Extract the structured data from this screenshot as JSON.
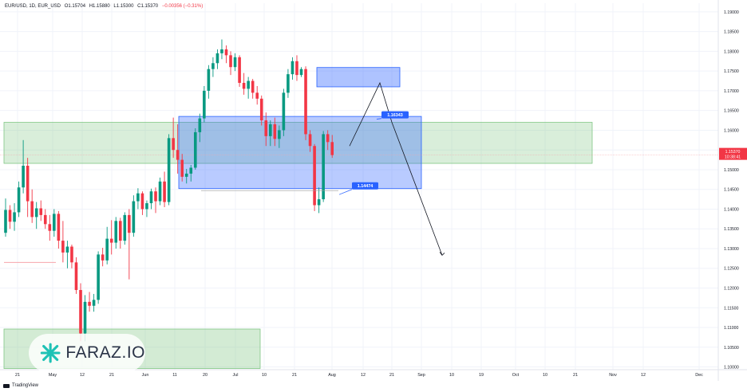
{
  "header": {
    "symbol": "EUR/USD, 1D, EUR_USD",
    "open": "O1.15704",
    "high": "H1.15880",
    "low": "L1.15300",
    "close": "C1.15370",
    "change": "−0.00356 (−0.31%)"
  },
  "footer": {
    "brand": "TradingView"
  },
  "watermark": {
    "brand": "FARAZ.IO"
  },
  "colors": {
    "up": "#089981",
    "down": "#f23645",
    "zone_green": "#c8e6c9",
    "zone_blue": "#6f9ef0",
    "label_blue": "#2962ff",
    "price_tag": "#f23645"
  },
  "chart_data": {
    "type": "candlestick",
    "symbol": "EUR/USD",
    "timeframe": "1D",
    "price_axis": {
      "range": [
        1.0993,
        1.1922
      ],
      "tick_labels": [
        "1.19000",
        "1.18500",
        "1.18000",
        "1.17500",
        "1.17000",
        "1.16500",
        "1.16000",
        "1.15500",
        "1.15000",
        "1.14500",
        "1.14000",
        "1.13500",
        "1.13000",
        "1.12500",
        "1.12000",
        "1.11500",
        "1.11000",
        "1.10500",
        "1.10000"
      ],
      "current_price": "1.15370",
      "countdown": "10:38:41"
    },
    "time_axis": {
      "tick_labels": [
        "21",
        "May",
        "12",
        "21",
        "Jun",
        "11",
        "20",
        "Jul",
        "10",
        "21",
        "Aug",
        "12",
        "21",
        "Sep",
        "10",
        "19",
        "Oct",
        "10",
        "21",
        "Nov",
        "12",
        "Dec"
      ]
    },
    "candles": [
      {
        "o": 1.134,
        "h": 1.1427,
        "l": 1.133,
        "c": 1.1398
      },
      {
        "o": 1.1398,
        "h": 1.141,
        "l": 1.135,
        "c": 1.1368
      },
      {
        "o": 1.1368,
        "h": 1.1415,
        "l": 1.1345,
        "c": 1.1392
      },
      {
        "o": 1.1392,
        "h": 1.147,
        "l": 1.138,
        "c": 1.1455
      },
      {
        "o": 1.1455,
        "h": 1.1575,
        "l": 1.144,
        "c": 1.151
      },
      {
        "o": 1.151,
        "h": 1.153,
        "l": 1.138,
        "c": 1.142
      },
      {
        "o": 1.142,
        "h": 1.145,
        "l": 1.1365,
        "c": 1.138
      },
      {
        "o": 1.138,
        "h": 1.1418,
        "l": 1.135,
        "c": 1.1402
      },
      {
        "o": 1.1402,
        "h": 1.1422,
        "l": 1.137,
        "c": 1.1385
      },
      {
        "o": 1.1385,
        "h": 1.14,
        "l": 1.135,
        "c": 1.1362
      },
      {
        "o": 1.1362,
        "h": 1.1385,
        "l": 1.132,
        "c": 1.1345
      },
      {
        "o": 1.1345,
        "h": 1.14,
        "l": 1.133,
        "c": 1.1388
      },
      {
        "o": 1.1388,
        "h": 1.1395,
        "l": 1.13,
        "c": 1.132
      },
      {
        "o": 1.132,
        "h": 1.137,
        "l": 1.1265,
        "c": 1.129
      },
      {
        "o": 1.129,
        "h": 1.132,
        "l": 1.125,
        "c": 1.1305
      },
      {
        "o": 1.1305,
        "h": 1.131,
        "l": 1.125,
        "c": 1.1265
      },
      {
        "o": 1.1265,
        "h": 1.1278,
        "l": 1.1185,
        "c": 1.1195
      },
      {
        "o": 1.1195,
        "h": 1.1212,
        "l": 1.1065,
        "c": 1.1085
      },
      {
        "o": 1.1085,
        "h": 1.1182,
        "l": 1.1065,
        "c": 1.1165
      },
      {
        "o": 1.1165,
        "h": 1.119,
        "l": 1.114,
        "c": 1.1155
      },
      {
        "o": 1.1155,
        "h": 1.1185,
        "l": 1.114,
        "c": 1.117
      },
      {
        "o": 1.117,
        "h": 1.1293,
        "l": 1.116,
        "c": 1.1285
      },
      {
        "o": 1.1285,
        "h": 1.1302,
        "l": 1.1255,
        "c": 1.127
      },
      {
        "o": 1.127,
        "h": 1.1355,
        "l": 1.126,
        "c": 1.1325
      },
      {
        "o": 1.1325,
        "h": 1.1372,
        "l": 1.1285,
        "c": 1.1315
      },
      {
        "o": 1.1315,
        "h": 1.138,
        "l": 1.13,
        "c": 1.137
      },
      {
        "o": 1.137,
        "h": 1.1378,
        "l": 1.13,
        "c": 1.132
      },
      {
        "o": 1.132,
        "h": 1.1392,
        "l": 1.131,
        "c": 1.1385
      },
      {
        "o": 1.1385,
        "h": 1.14,
        "l": 1.1222,
        "c": 1.134
      },
      {
        "o": 1.134,
        "h": 1.1435,
        "l": 1.133,
        "c": 1.142
      },
      {
        "o": 1.142,
        "h": 1.1453,
        "l": 1.14,
        "c": 1.144
      },
      {
        "o": 1.144,
        "h": 1.1445,
        "l": 1.1385,
        "c": 1.14
      },
      {
        "o": 1.14,
        "h": 1.1422,
        "l": 1.138,
        "c": 1.1415
      },
      {
        "o": 1.1415,
        "h": 1.1452,
        "l": 1.14,
        "c": 1.1445
      },
      {
        "o": 1.1445,
        "h": 1.1455,
        "l": 1.139,
        "c": 1.142
      },
      {
        "o": 1.142,
        "h": 1.148,
        "l": 1.141,
        "c": 1.147
      },
      {
        "o": 1.147,
        "h": 1.1495,
        "l": 1.1405,
        "c": 1.1418
      },
      {
        "o": 1.1418,
        "h": 1.159,
        "l": 1.141,
        "c": 1.158
      },
      {
        "o": 1.158,
        "h": 1.1632,
        "l": 1.153,
        "c": 1.155
      },
      {
        "o": 1.155,
        "h": 1.1615,
        "l": 1.149,
        "c": 1.1525
      },
      {
        "o": 1.1525,
        "h": 1.154,
        "l": 1.147,
        "c": 1.1482
      },
      {
        "o": 1.1482,
        "h": 1.1502,
        "l": 1.1465,
        "c": 1.149
      },
      {
        "o": 1.149,
        "h": 1.1512,
        "l": 1.147,
        "c": 1.1505
      },
      {
        "o": 1.1505,
        "h": 1.1605,
        "l": 1.15,
        "c": 1.1595
      },
      {
        "o": 1.1595,
        "h": 1.1642,
        "l": 1.157,
        "c": 1.163
      },
      {
        "o": 1.163,
        "h": 1.1712,
        "l": 1.162,
        "c": 1.17
      },
      {
        "o": 1.17,
        "h": 1.1765,
        "l": 1.168,
        "c": 1.1755
      },
      {
        "o": 1.1755,
        "h": 1.1785,
        "l": 1.1735,
        "c": 1.177
      },
      {
        "o": 1.177,
        "h": 1.1805,
        "l": 1.1755,
        "c": 1.1795
      },
      {
        "o": 1.1795,
        "h": 1.183,
        "l": 1.178,
        "c": 1.1805
      },
      {
        "o": 1.1805,
        "h": 1.1815,
        "l": 1.177,
        "c": 1.179
      },
      {
        "o": 1.179,
        "h": 1.18,
        "l": 1.174,
        "c": 1.176
      },
      {
        "o": 1.176,
        "h": 1.1795,
        "l": 1.175,
        "c": 1.1785
      },
      {
        "o": 1.1785,
        "h": 1.179,
        "l": 1.171,
        "c": 1.172
      },
      {
        "o": 1.172,
        "h": 1.1745,
        "l": 1.169,
        "c": 1.1705
      },
      {
        "o": 1.1705,
        "h": 1.1735,
        "l": 1.168,
        "c": 1.1725
      },
      {
        "o": 1.1725,
        "h": 1.173,
        "l": 1.168,
        "c": 1.1695
      },
      {
        "o": 1.1695,
        "h": 1.1712,
        "l": 1.1665,
        "c": 1.168
      },
      {
        "o": 1.168,
        "h": 1.1688,
        "l": 1.1612,
        "c": 1.1625
      },
      {
        "o": 1.1625,
        "h": 1.1645,
        "l": 1.156,
        "c": 1.1585
      },
      {
        "o": 1.1585,
        "h": 1.1625,
        "l": 1.156,
        "c": 1.1615
      },
      {
        "o": 1.1615,
        "h": 1.1632,
        "l": 1.156,
        "c": 1.1578
      },
      {
        "o": 1.1578,
        "h": 1.1612,
        "l": 1.1555,
        "c": 1.16
      },
      {
        "o": 1.16,
        "h": 1.1705,
        "l": 1.1585,
        "c": 1.1695
      },
      {
        "o": 1.1695,
        "h": 1.1755,
        "l": 1.1682,
        "c": 1.1742
      },
      {
        "o": 1.1742,
        "h": 1.1785,
        "l": 1.1728,
        "c": 1.1775
      },
      {
        "o": 1.1775,
        "h": 1.179,
        "l": 1.1725,
        "c": 1.174
      },
      {
        "o": 1.174,
        "h": 1.176,
        "l": 1.1735,
        "c": 1.1755
      },
      {
        "o": 1.1755,
        "h": 1.1762,
        "l": 1.1575,
        "c": 1.159
      },
      {
        "o": 1.159,
        "h": 1.16,
        "l": 1.1545,
        "c": 1.156
      },
      {
        "o": 1.156,
        "h": 1.1565,
        "l": 1.1395,
        "c": 1.141
      },
      {
        "o": 1.141,
        "h": 1.1455,
        "l": 1.139,
        "c": 1.1425
      },
      {
        "o": 1.1425,
        "h": 1.1598,
        "l": 1.1418,
        "c": 1.159
      },
      {
        "o": 1.159,
        "h": 1.16,
        "l": 1.155,
        "c": 1.157
      },
      {
        "o": 1.157,
        "h": 1.1588,
        "l": 1.153,
        "c": 1.1537
      }
    ],
    "zones": [
      {
        "kind": "green",
        "from": 1.1516,
        "to": 1.162
      },
      {
        "kind": "blue",
        "from": 1.1452,
        "to": 1.1635
      },
      {
        "kind": "blue",
        "from": 1.171,
        "to": 1.1759
      },
      {
        "kind": "green",
        "from": 1.0996,
        "to": 1.1096
      }
    ],
    "levels": [
      "1.16343",
      "1.14474"
    ],
    "projection": [
      1.156,
      1.172,
      1.162,
      1.1283
    ]
  }
}
